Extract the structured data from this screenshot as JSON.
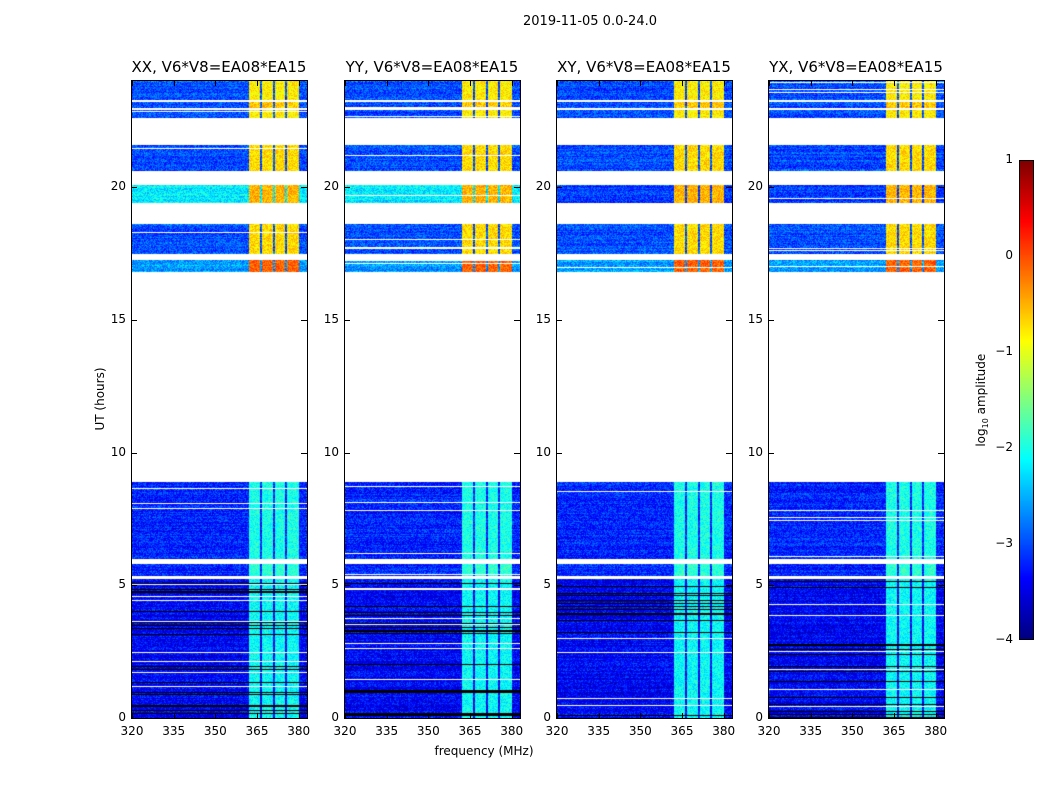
{
  "suptitle": "2019-11-05 0.0-24.0",
  "chart_data": {
    "type": "heatmap",
    "title": "2019-11-05 0.0-24.0",
    "xlabel": "frequency (MHz)",
    "ylabel": "UT (hours)",
    "xlim": [
      320,
      383
    ],
    "ylim": [
      0,
      24
    ],
    "xticks": [
      "320",
      "335",
      "350",
      "365",
      "380"
    ],
    "yticks": [
      "0",
      "5",
      "10",
      "15",
      "20"
    ],
    "colormap": "jet",
    "colorbar": {
      "label_main": "log",
      "label_sub": "10",
      "label_rest": " amplitude",
      "vmin": -4,
      "vmax": 1,
      "ticks": [
        "1",
        "0",
        "−1",
        "−2",
        "−3",
        "−4"
      ]
    },
    "rfi_band_mhz": [
      362,
      380
    ],
    "panels": [
      {
        "title": "XX, V6*V8=EA08*EA15",
        "day_bg": -2.2
      },
      {
        "title": "YY, V6*V8=EA08*EA15",
        "day_bg": -2.2
      },
      {
        "title": "XY, V6*V8=EA08*EA15",
        "day_bg": -3.1
      },
      {
        "title": "YX, V6*V8=EA08*EA15",
        "day_bg": -3.1
      }
    ],
    "segments_hours": [
      {
        "start": 0.0,
        "end": 5.25,
        "bg": -3.4,
        "rfi": -2.1,
        "flagged_lines": true
      },
      {
        "start": 5.35,
        "end": 5.8,
        "bg": -3.2,
        "rfi": -1.9
      },
      {
        "start": 6.0,
        "end": 8.9,
        "bg": -3.2,
        "rfi": -2.0
      },
      {
        "start": 16.8,
        "end": 17.25,
        "bg": -2.6,
        "rfi": -0.1
      },
      {
        "start": 17.5,
        "end": 18.6,
        "bg": -3.0,
        "rfi": -0.7
      },
      {
        "start": 19.4,
        "end": 20.1,
        "bg": "day_bg",
        "rfi": -0.5
      },
      {
        "start": 20.6,
        "end": 21.6,
        "bg": -3.0,
        "rfi": -0.7
      },
      {
        "start": 22.6,
        "end": 22.9,
        "bg": -3.0,
        "rfi": -0.8
      },
      {
        "start": 23.0,
        "end": 23.2,
        "bg": -3.0,
        "rfi": -0.6
      },
      {
        "start": 23.3,
        "end": 24.0,
        "bg": -3.0,
        "rfi": -0.8
      }
    ]
  }
}
